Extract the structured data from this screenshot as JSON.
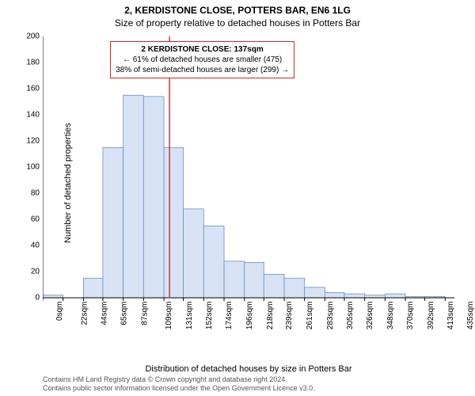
{
  "title": {
    "line1": "2, KERDISTONE CLOSE, POTTERS BAR, EN6 1LG",
    "line2": "Size of property relative to detached houses in Potters Bar"
  },
  "chart": {
    "type": "histogram",
    "ylabel": "Number of detached properties",
    "xlabel": "Distribution of detached houses by size in Potters Bar",
    "ylim": [
      0,
      200
    ],
    "ytick_step": 20,
    "xlim": [
      0,
      445
    ],
    "bar_color": "#d7e3f4",
    "bar_stroke": "#6b8fbe",
    "axis_color": "#000000",
    "background_color": "#ffffff",
    "vline_color": "#cc2a2a",
    "vline_x": 137,
    "annotation": {
      "line1": "2 KERDISTONE CLOSE: 137sqm",
      "line2": "← 61% of detached houses are smaller (475)",
      "line3": "38% of semi-detached houses are larger (299) →",
      "border_color": "#cc2a2a"
    },
    "x_ticks": [
      0,
      22,
      44,
      65,
      87,
      109,
      131,
      152,
      174,
      196,
      218,
      239,
      261,
      283,
      305,
      326,
      348,
      370,
      392,
      413,
      435
    ],
    "x_tick_labels": [
      "0sqm",
      "22sqm",
      "44sqm",
      "65sqm",
      "87sqm",
      "109sqm",
      "131sqm",
      "152sqm",
      "174sqm",
      "196sqm",
      "218sqm",
      "239sqm",
      "261sqm",
      "283sqm",
      "305sqm",
      "326sqm",
      "348sqm",
      "370sqm",
      "392sqm",
      "413sqm",
      "435sqm"
    ],
    "bars": [
      {
        "x0": 0,
        "x1": 22,
        "y": 2
      },
      {
        "x0": 22,
        "x1": 44,
        "y": 0
      },
      {
        "x0": 44,
        "x1": 65,
        "y": 15
      },
      {
        "x0": 65,
        "x1": 87,
        "y": 115
      },
      {
        "x0": 87,
        "x1": 109,
        "y": 155
      },
      {
        "x0": 109,
        "x1": 131,
        "y": 154
      },
      {
        "x0": 131,
        "x1": 152,
        "y": 115
      },
      {
        "x0": 152,
        "x1": 174,
        "y": 68
      },
      {
        "x0": 174,
        "x1": 196,
        "y": 55
      },
      {
        "x0": 196,
        "x1": 218,
        "y": 28
      },
      {
        "x0": 218,
        "x1": 239,
        "y": 27
      },
      {
        "x0": 239,
        "x1": 261,
        "y": 18
      },
      {
        "x0": 261,
        "x1": 283,
        "y": 15
      },
      {
        "x0": 283,
        "x1": 305,
        "y": 8
      },
      {
        "x0": 305,
        "x1": 326,
        "y": 4
      },
      {
        "x0": 326,
        "x1": 348,
        "y": 3
      },
      {
        "x0": 348,
        "x1": 370,
        "y": 2
      },
      {
        "x0": 370,
        "x1": 392,
        "y": 3
      },
      {
        "x0": 392,
        "x1": 413,
        "y": 1
      },
      {
        "x0": 413,
        "x1": 435,
        "y": 1
      }
    ]
  },
  "footer": {
    "line1": "Contains HM Land Registry data © Crown copyright and database right 2024.",
    "line2": "Contains public sector information licensed under the Open Government Licence v3.0."
  }
}
